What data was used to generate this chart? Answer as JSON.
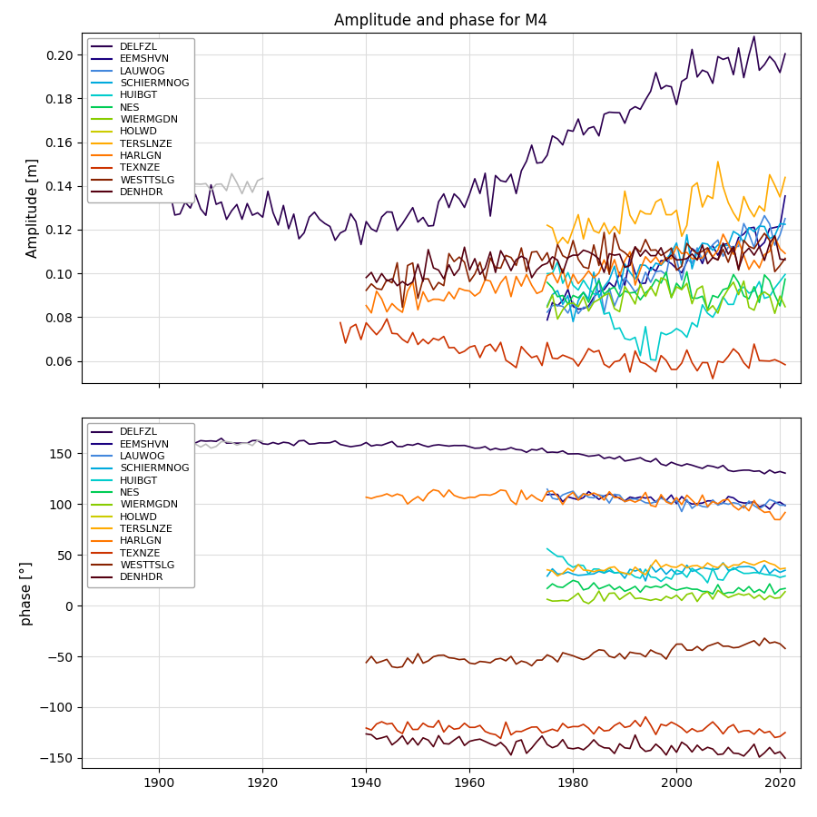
{
  "title": "Amplitude and phase for M4",
  "stations": [
    "DELFZL",
    "EEMSHVN",
    "LAUWOG",
    "SCHIERMNOG",
    "HUIBGT",
    "NES",
    "WIERMGDN",
    "HOLWD",
    "TERSLNZE",
    "HARLGN",
    "TEXNZE",
    "WESTTSLG",
    "DENHDR"
  ],
  "colors": {
    "DELFZL": "#2d0050",
    "EEMSHVN": "#1a0080",
    "LAUWOG": "#4488dd",
    "SCHIERMNOG": "#00aadd",
    "HUIBGT": "#00cccc",
    "NES": "#00cc55",
    "WIERMGDN": "#88cc00",
    "HOLWD": "#cccc00",
    "TERSLNZE": "#ffaa00",
    "HARLGN": "#ff7700",
    "TEXNZE": "#cc3300",
    "WESTTSLG": "#882200",
    "DENHDR": "#550011"
  },
  "gray_color": "#bbbbbb",
  "xlim": [
    1885,
    2024
  ],
  "amp_ylim": [
    0.05,
    0.21
  ],
  "phase_ylim": [
    -160,
    185
  ],
  "amp_yticks": [
    0.06,
    0.08,
    0.1,
    0.12,
    0.14,
    0.16,
    0.18,
    0.2
  ],
  "phase_yticks": [
    -150,
    -100,
    -50,
    0,
    50,
    100,
    150
  ],
  "amp_ylabel": "Amplitude [m]",
  "phase_ylabel": "phase [°]"
}
